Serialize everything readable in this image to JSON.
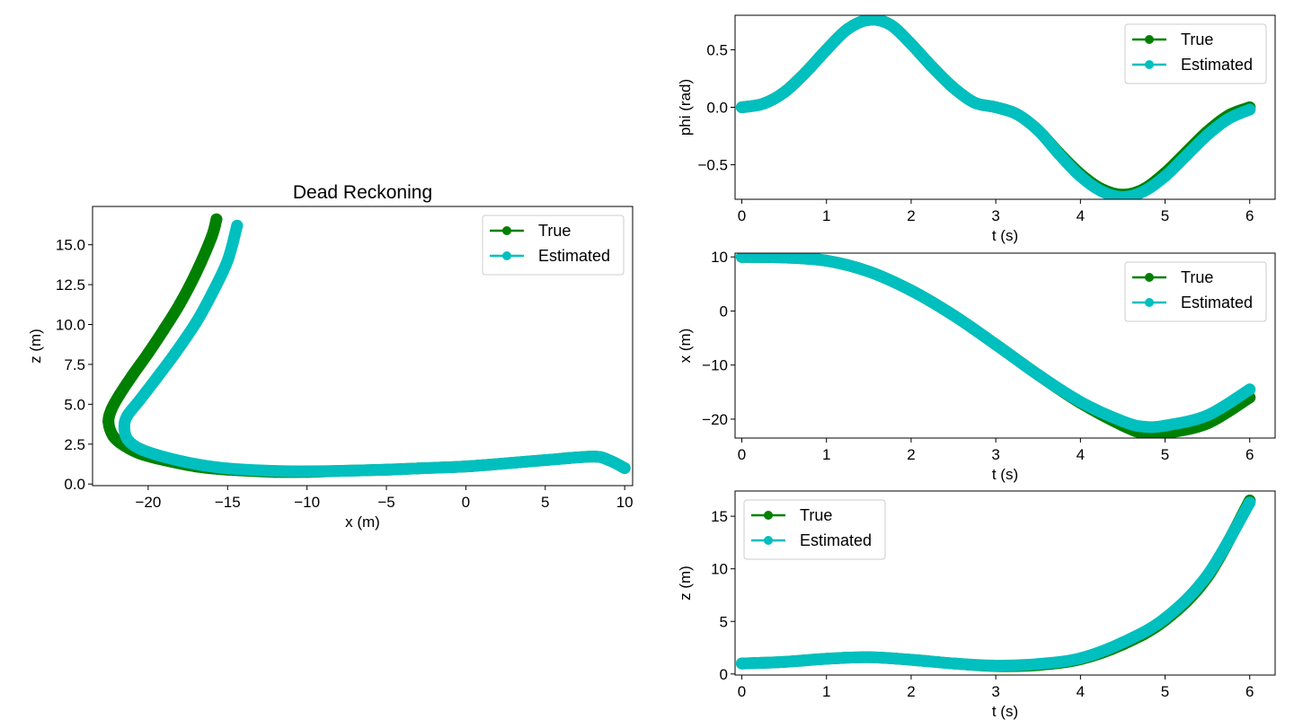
{
  "colors": {
    "true": "#008000",
    "estimated": "#00bfbf"
  },
  "chart_data": [
    {
      "id": "dead-reckoning",
      "type": "line",
      "title": "Dead Reckoning",
      "xlabel": "x (m)",
      "ylabel": "z (m)",
      "xlim": [
        -23.5,
        10.5
      ],
      "ylim": [
        -0.1,
        17.4
      ],
      "xticks": [
        -20,
        -15,
        -10,
        -5,
        0,
        5,
        10
      ],
      "xticklabels": [
        "−20",
        "−15",
        "−10",
        "−5",
        "0",
        "5",
        "10"
      ],
      "yticks": [
        0.0,
        2.5,
        5.0,
        7.5,
        10.0,
        12.5,
        15.0
      ],
      "yticklabels": [
        "0.0",
        "2.5",
        "5.0",
        "7.5",
        "10.0",
        "12.5",
        "15.0"
      ],
      "legend": "top-right",
      "series": [
        {
          "name": "True",
          "color": "#008000",
          "marker": "circle",
          "points": [
            [
              10,
              1
            ],
            [
              9,
              1.5
            ],
            [
              8,
              1.72
            ],
            [
              5,
              1.5
            ],
            [
              2,
              1.25
            ],
            [
              0,
              1.1
            ],
            [
              -3,
              0.98
            ],
            [
              -5,
              0.9
            ],
            [
              -8,
              0.82
            ],
            [
              -10,
              0.76
            ],
            [
              -12,
              0.76
            ],
            [
              -15,
              0.9
            ],
            [
              -17,
              1.1
            ],
            [
              -19,
              1.5
            ],
            [
              -20.5,
              1.9
            ],
            [
              -21.5,
              2.4
            ],
            [
              -22.2,
              3.0
            ],
            [
              -22.5,
              3.9
            ],
            [
              -22.3,
              4.7
            ],
            [
              -21.8,
              5.6
            ],
            [
              -21,
              6.8
            ],
            [
              -20,
              8.2
            ],
            [
              -19,
              9.7
            ],
            [
              -18,
              11.3
            ],
            [
              -17,
              13.2
            ],
            [
              -16,
              15.5
            ],
            [
              -15.7,
              16.6
            ]
          ]
        },
        {
          "name": "Estimated",
          "color": "#00bfbf",
          "marker": "circle",
          "points": [
            [
              10,
              1
            ],
            [
              9,
              1.5
            ],
            [
              8,
              1.72
            ],
            [
              5,
              1.5
            ],
            [
              2,
              1.25
            ],
            [
              0,
              1.1
            ],
            [
              -3,
              0.98
            ],
            [
              -5,
              0.9
            ],
            [
              -8,
              0.82
            ],
            [
              -10,
              0.8
            ],
            [
              -12,
              0.82
            ],
            [
              -15,
              0.98
            ],
            [
              -17,
              1.25
            ],
            [
              -19,
              1.7
            ],
            [
              -20.5,
              2.2
            ],
            [
              -21.3,
              2.8
            ],
            [
              -21.5,
              3.6
            ],
            [
              -21.3,
              4.3
            ],
            [
              -20.5,
              5.3
            ],
            [
              -19.5,
              6.6
            ],
            [
              -18.3,
              8.2
            ],
            [
              -17,
              10.1
            ],
            [
              -16,
              11.9
            ],
            [
              -15,
              14
            ],
            [
              -14.4,
              16.2
            ]
          ]
        }
      ]
    },
    {
      "id": "phi-vs-time",
      "type": "line",
      "title": "",
      "xlabel": "t (s)",
      "ylabel": "phi (rad)",
      "xlim": [
        -0.08,
        6.3
      ],
      "ylim": [
        -0.8,
        0.8
      ],
      "xticks": [
        0,
        1,
        2,
        3,
        4,
        5,
        6
      ],
      "xticklabels": [
        "0",
        "1",
        "2",
        "3",
        "4",
        "5",
        "6"
      ],
      "yticks": [
        -0.5,
        0.0,
        0.5
      ],
      "yticklabels": [
        "−0.5",
        "0.0",
        "0.5"
      ],
      "legend": "top-right",
      "series": [
        {
          "name": "True",
          "color": "#008000",
          "marker": "circle",
          "points": [
            [
              0,
              0
            ],
            [
              0.25,
              0.03
            ],
            [
              0.5,
              0.13
            ],
            [
              0.75,
              0.3
            ],
            [
              1,
              0.5
            ],
            [
              1.25,
              0.68
            ],
            [
              1.5,
              0.76
            ],
            [
              1.75,
              0.72
            ],
            [
              2,
              0.55
            ],
            [
              2.25,
              0.35
            ],
            [
              2.5,
              0.17
            ],
            [
              2.75,
              0.04
            ],
            [
              3,
              0
            ],
            [
              3.25,
              -0.06
            ],
            [
              3.5,
              -0.2
            ],
            [
              3.75,
              -0.4
            ],
            [
              4,
              -0.58
            ],
            [
              4.25,
              -0.71
            ],
            [
              4.5,
              -0.76
            ],
            [
              4.75,
              -0.71
            ],
            [
              5,
              -0.57
            ],
            [
              5.25,
              -0.39
            ],
            [
              5.5,
              -0.21
            ],
            [
              5.75,
              -0.07
            ],
            [
              6,
              0
            ]
          ]
        },
        {
          "name": "Estimated",
          "color": "#00bfbf",
          "marker": "circle",
          "points": [
            [
              0,
              0
            ],
            [
              0.25,
              0.03
            ],
            [
              0.5,
              0.13
            ],
            [
              0.75,
              0.3
            ],
            [
              1,
              0.5
            ],
            [
              1.25,
              0.68
            ],
            [
              1.5,
              0.76
            ],
            [
              1.75,
              0.72
            ],
            [
              2,
              0.55
            ],
            [
              2.25,
              0.35
            ],
            [
              2.5,
              0.17
            ],
            [
              2.75,
              0.04
            ],
            [
              3,
              0
            ],
            [
              3.25,
              -0.06
            ],
            [
              3.5,
              -0.2
            ],
            [
              3.75,
              -0.41
            ],
            [
              4,
              -0.6
            ],
            [
              4.25,
              -0.73
            ],
            [
              4.5,
              -0.78
            ],
            [
              4.75,
              -0.73
            ],
            [
              5,
              -0.6
            ],
            [
              5.25,
              -0.42
            ],
            [
              5.5,
              -0.24
            ],
            [
              5.75,
              -0.1
            ],
            [
              6,
              -0.02
            ]
          ]
        }
      ]
    },
    {
      "id": "x-vs-time",
      "type": "line",
      "title": "",
      "xlabel": "t (s)",
      "ylabel": "x (m)",
      "xlim": [
        -0.08,
        6.3
      ],
      "ylim": [
        -23.5,
        10.7
      ],
      "xticks": [
        0,
        1,
        2,
        3,
        4,
        5,
        6
      ],
      "xticklabels": [
        "0",
        "1",
        "2",
        "3",
        "4",
        "5",
        "6"
      ],
      "yticks": [
        -20,
        -10,
        0,
        10
      ],
      "yticklabels": [
        "−20",
        "−10",
        "0",
        "10"
      ],
      "legend": "top-right",
      "series": [
        {
          "name": "True",
          "color": "#008000",
          "marker": "circle",
          "points": [
            [
              0,
              10
            ],
            [
              0.5,
              9.9
            ],
            [
              1,
              9.3
            ],
            [
              1.5,
              7.3
            ],
            [
              2,
              3.8
            ],
            [
              2.5,
              -0.8
            ],
            [
              3,
              -6.2
            ],
            [
              3.5,
              -11.8
            ],
            [
              4,
              -17
            ],
            [
              4.5,
              -21.2
            ],
            [
              4.75,
              -22.6
            ],
            [
              5,
              -22.6
            ],
            [
              5.5,
              -20.8
            ],
            [
              6,
              -16
            ]
          ]
        },
        {
          "name": "Estimated",
          "color": "#00bfbf",
          "marker": "circle",
          "points": [
            [
              0,
              10
            ],
            [
              0.5,
              9.9
            ],
            [
              1,
              9.3
            ],
            [
              1.5,
              7.3
            ],
            [
              2,
              3.8
            ],
            [
              2.5,
              -0.8
            ],
            [
              3,
              -6.2
            ],
            [
              3.5,
              -11.8
            ],
            [
              4,
              -16.8
            ],
            [
              4.5,
              -20.4
            ],
            [
              4.75,
              -21.4
            ],
            [
              5,
              -21.2
            ],
            [
              5.5,
              -19.3
            ],
            [
              6,
              -14.5
            ]
          ]
        }
      ]
    },
    {
      "id": "z-vs-time",
      "type": "line",
      "title": "",
      "xlabel": "t (s)",
      "ylabel": "z (m)",
      "xlim": [
        -0.08,
        6.3
      ],
      "ylim": [
        -0.1,
        17.4
      ],
      "xticks": [
        0,
        1,
        2,
        3,
        4,
        5,
        6
      ],
      "xticklabels": [
        "0",
        "1",
        "2",
        "3",
        "4",
        "5",
        "6"
      ],
      "yticks": [
        0,
        5,
        10,
        15
      ],
      "yticklabels": [
        "0",
        "5",
        "10",
        "15"
      ],
      "legend": "top-left",
      "series": [
        {
          "name": "True",
          "color": "#008000",
          "marker": "circle",
          "points": [
            [
              0,
              1
            ],
            [
              0.5,
              1.15
            ],
            [
              1,
              1.45
            ],
            [
              1.5,
              1.6
            ],
            [
              2,
              1.35
            ],
            [
              2.5,
              1.0
            ],
            [
              3,
              0.75
            ],
            [
              3.5,
              0.85
            ],
            [
              4,
              1.4
            ],
            [
              4.5,
              2.8
            ],
            [
              5,
              5.1
            ],
            [
              5.5,
              9.2
            ],
            [
              6,
              16.5
            ]
          ]
        },
        {
          "name": "Estimated",
          "color": "#00bfbf",
          "marker": "circle",
          "points": [
            [
              0,
              1
            ],
            [
              0.5,
              1.15
            ],
            [
              1,
              1.45
            ],
            [
              1.5,
              1.6
            ],
            [
              2,
              1.35
            ],
            [
              2.5,
              1.0
            ],
            [
              3,
              0.8
            ],
            [
              3.5,
              0.95
            ],
            [
              4,
              1.5
            ],
            [
              4.5,
              3.0
            ],
            [
              5,
              5.3
            ],
            [
              5.5,
              9.4
            ],
            [
              6,
              16.3
            ]
          ]
        }
      ]
    }
  ]
}
